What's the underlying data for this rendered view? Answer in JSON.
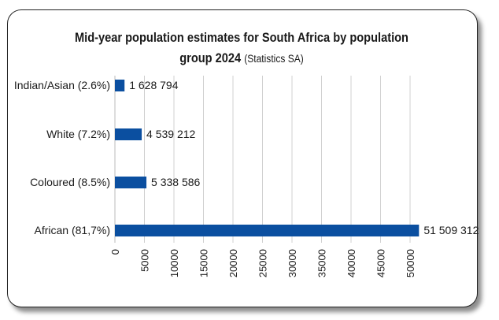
{
  "chart_data": {
    "type": "bar",
    "orientation": "horizontal",
    "title_main": "Mid-year population estimates for South Africa by population",
    "title_line2": "group 2024",
    "title_source": "(Statistics SA)",
    "categories": [
      "Indian/Asian (2.6%)",
      "White (7.2%)",
      "Coloured (8.5%)",
      "African (81,7%)"
    ],
    "values": [
      1628794,
      4539212,
      5338586,
      51509312
    ],
    "data_labels": [
      "1 628 794",
      "4 539 212",
      "5 338 586",
      "51 509 312"
    ],
    "xlim": [
      0,
      50000
    ],
    "x_ticks": [
      "0",
      "5000",
      "10000",
      "15000",
      "20000",
      "25000",
      "30000",
      "35000",
      "40000",
      "45000",
      "50000"
    ],
    "grid": "vertical",
    "bar_color": "#0b4fa0",
    "grid_color": "#d0d0d0"
  }
}
